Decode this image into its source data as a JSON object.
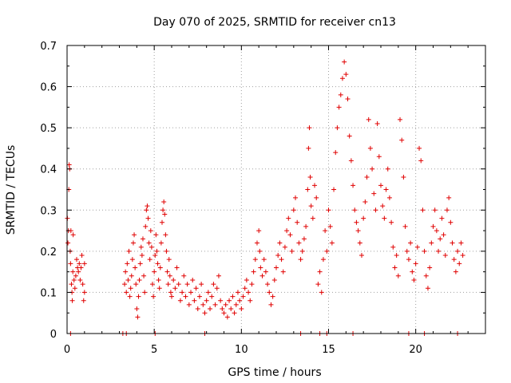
{
  "chart_data": {
    "type": "scatter",
    "title": "Day 070 of 2025, SRMTID for receiver cn13",
    "xlabel": "GPS time / hours",
    "ylabel": "SRMTID / TECUs",
    "xlim": [
      0,
      24
    ],
    "ylim": [
      0,
      0.7
    ],
    "xticks": [
      0,
      5,
      10,
      15,
      20
    ],
    "yticks": [
      0,
      0.1,
      0.2,
      0.3,
      0.4,
      0.5,
      0.6,
      0.7
    ],
    "xtick_labels": [
      "0",
      "5",
      "10",
      "15",
      "20"
    ],
    "ytick_labels": [
      "0",
      "0.1",
      "0.2",
      "0.3",
      "0.4",
      "0.5",
      "0.6",
      "0.7"
    ],
    "grid": true,
    "marker": "plus",
    "color": "#e00000",
    "series": [
      {
        "name": "SRMTID",
        "points": [
          [
            0.02,
            0.28
          ],
          [
            0.05,
            0.22
          ],
          [
            0.08,
            0.25
          ],
          [
            0.1,
            0.35
          ],
          [
            0.12,
            0.41
          ],
          [
            0.15,
            0.4
          ],
          [
            0.18,
            0.2
          ],
          [
            0.2,
            0.17
          ],
          [
            0.22,
            0.25
          ],
          [
            0.25,
            0.12
          ],
          [
            0.28,
            0.1
          ],
          [
            0.3,
            0.08
          ],
          [
            0.33,
            0.15
          ],
          [
            0.35,
            0.24
          ],
          [
            0.4,
            0.13
          ],
          [
            0.45,
            0.11
          ],
          [
            0.5,
            0.14
          ],
          [
            0.55,
            0.18
          ],
          [
            0.6,
            0.16
          ],
          [
            0.65,
            0.15
          ],
          [
            0.7,
            0.17
          ],
          [
            0.75,
            0.13
          ],
          [
            0.8,
            0.16
          ],
          [
            0.85,
            0.19
          ],
          [
            0.9,
            0.12
          ],
          [
            0.95,
            0.08
          ],
          [
            1.0,
            0.1
          ],
          [
            1.0,
            0.17
          ],
          [
            3.3,
            0.12
          ],
          [
            3.35,
            0.15
          ],
          [
            3.4,
            0.1
          ],
          [
            3.45,
            0.17
          ],
          [
            3.5,
            0.13
          ],
          [
            3.55,
            0.2
          ],
          [
            3.6,
            0.09
          ],
          [
            3.65,
            0.11
          ],
          [
            3.7,
            0.14
          ],
          [
            3.75,
            0.18
          ],
          [
            3.8,
            0.22
          ],
          [
            3.85,
            0.24
          ],
          [
            3.9,
            0.16
          ],
          [
            3.95,
            0.12
          ],
          [
            4.0,
            0.06
          ],
          [
            4.05,
            0.04
          ],
          [
            4.1,
            0.09
          ],
          [
            4.15,
            0.13
          ],
          [
            4.2,
            0.17
          ],
          [
            4.25,
            0.21
          ],
          [
            4.3,
            0.19
          ],
          [
            4.35,
            0.23
          ],
          [
            4.4,
            0.14
          ],
          [
            4.45,
            0.1
          ],
          [
            4.5,
            0.26
          ],
          [
            4.55,
            0.3
          ],
          [
            4.6,
            0.31
          ],
          [
            4.65,
            0.28
          ],
          [
            4.7,
            0.22
          ],
          [
            4.75,
            0.18
          ],
          [
            4.8,
            0.25
          ],
          [
            4.85,
            0.21
          ],
          [
            4.9,
            0.12
          ],
          [
            4.95,
            0.09
          ],
          [
            5.0,
            0.15
          ],
          [
            5.05,
            0.19
          ],
          [
            5.1,
            0.24
          ],
          [
            5.15,
            0.2
          ],
          [
            5.2,
            0.17
          ],
          [
            5.25,
            0.13
          ],
          [
            5.3,
            0.11
          ],
          [
            5.35,
            0.16
          ],
          [
            5.4,
            0.22
          ],
          [
            5.45,
            0.27
          ],
          [
            5.5,
            0.3
          ],
          [
            5.55,
            0.32
          ],
          [
            5.6,
            0.29
          ],
          [
            5.65,
            0.24
          ],
          [
            5.7,
            0.2
          ],
          [
            5.75,
            0.15
          ],
          [
            5.8,
            0.12
          ],
          [
            5.85,
            0.18
          ],
          [
            5.9,
            0.14
          ],
          [
            5.95,
            0.1
          ],
          [
            6.0,
            0.09
          ],
          [
            6.1,
            0.13
          ],
          [
            6.2,
            0.11
          ],
          [
            6.3,
            0.16
          ],
          [
            6.4,
            0.12
          ],
          [
            6.5,
            0.08
          ],
          [
            6.6,
            0.1
          ],
          [
            6.7,
            0.14
          ],
          [
            6.8,
            0.09
          ],
          [
            6.9,
            0.12
          ],
          [
            7.0,
            0.07
          ],
          [
            7.1,
            0.1
          ],
          [
            7.2,
            0.13
          ],
          [
            7.3,
            0.08
          ],
          [
            7.4,
            0.11
          ],
          [
            7.5,
            0.06
          ],
          [
            7.6,
            0.09
          ],
          [
            7.7,
            0.12
          ],
          [
            7.8,
            0.07
          ],
          [
            7.9,
            0.05
          ],
          [
            8.0,
            0.08
          ],
          [
            8.1,
            0.1
          ],
          [
            8.2,
            0.06
          ],
          [
            8.3,
            0.09
          ],
          [
            8.4,
            0.12
          ],
          [
            8.5,
            0.07
          ],
          [
            8.6,
            0.11
          ],
          [
            8.7,
            0.14
          ],
          [
            8.8,
            0.08
          ],
          [
            8.9,
            0.06
          ],
          [
            9.0,
            0.05
          ],
          [
            9.1,
            0.07
          ],
          [
            9.2,
            0.04
          ],
          [
            9.3,
            0.08
          ],
          [
            9.4,
            0.06
          ],
          [
            9.5,
            0.09
          ],
          [
            9.6,
            0.05
          ],
          [
            9.7,
            0.07
          ],
          [
            9.8,
            0.1
          ],
          [
            9.9,
            0.08
          ],
          [
            10.0,
            0.06
          ],
          [
            10.1,
            0.09
          ],
          [
            10.2,
            0.11
          ],
          [
            10.3,
            0.13
          ],
          [
            10.4,
            0.1
          ],
          [
            10.5,
            0.08
          ],
          [
            10.6,
            0.12
          ],
          [
            10.7,
            0.15
          ],
          [
            10.8,
            0.18
          ],
          [
            10.9,
            0.22
          ],
          [
            11.0,
            0.25
          ],
          [
            11.05,
            0.2
          ],
          [
            11.1,
            0.16
          ],
          [
            11.2,
            0.14
          ],
          [
            11.3,
            0.18
          ],
          [
            11.4,
            0.15
          ],
          [
            11.5,
            0.12
          ],
          [
            11.6,
            0.1
          ],
          [
            11.7,
            0.07
          ],
          [
            11.8,
            0.09
          ],
          [
            11.9,
            0.13
          ],
          [
            12.0,
            0.16
          ],
          [
            12.1,
            0.19
          ],
          [
            12.2,
            0.22
          ],
          [
            12.3,
            0.18
          ],
          [
            12.4,
            0.15
          ],
          [
            12.5,
            0.21
          ],
          [
            12.6,
            0.25
          ],
          [
            12.7,
            0.28
          ],
          [
            12.8,
            0.24
          ],
          [
            12.9,
            0.2
          ],
          [
            13.0,
            0.3
          ],
          [
            13.1,
            0.33
          ],
          [
            13.2,
            0.27
          ],
          [
            13.3,
            0.22
          ],
          [
            13.4,
            0.18
          ],
          [
            13.5,
            0.2
          ],
          [
            13.6,
            0.23
          ],
          [
            13.7,
            0.26
          ],
          [
            13.8,
            0.35
          ],
          [
            13.85,
            0.45
          ],
          [
            13.9,
            0.5
          ],
          [
            13.95,
            0.38
          ],
          [
            14.0,
            0.31
          ],
          [
            14.1,
            0.28
          ],
          [
            14.2,
            0.36
          ],
          [
            14.3,
            0.33
          ],
          [
            14.4,
            0.12
          ],
          [
            14.5,
            0.15
          ],
          [
            14.6,
            0.1
          ],
          [
            14.7,
            0.18
          ],
          [
            14.8,
            0.25
          ],
          [
            14.9,
            0.2
          ],
          [
            15.0,
            0.3
          ],
          [
            15.1,
            0.26
          ],
          [
            15.2,
            0.22
          ],
          [
            15.3,
            0.35
          ],
          [
            15.4,
            0.44
          ],
          [
            15.5,
            0.5
          ],
          [
            15.6,
            0.55
          ],
          [
            15.7,
            0.58
          ],
          [
            15.8,
            0.62
          ],
          [
            15.9,
            0.66
          ],
          [
            16.0,
            0.63
          ],
          [
            16.1,
            0.57
          ],
          [
            16.2,
            0.48
          ],
          [
            16.3,
            0.42
          ],
          [
            16.4,
            0.36
          ],
          [
            16.5,
            0.3
          ],
          [
            16.6,
            0.27
          ],
          [
            16.7,
            0.25
          ],
          [
            16.8,
            0.22
          ],
          [
            16.9,
            0.19
          ],
          [
            17.0,
            0.28
          ],
          [
            17.1,
            0.32
          ],
          [
            17.2,
            0.38
          ],
          [
            17.3,
            0.52
          ],
          [
            17.4,
            0.45
          ],
          [
            17.5,
            0.4
          ],
          [
            17.6,
            0.34
          ],
          [
            17.7,
            0.3
          ],
          [
            17.8,
            0.51
          ],
          [
            17.9,
            0.43
          ],
          [
            18.0,
            0.36
          ],
          [
            18.1,
            0.31
          ],
          [
            18.2,
            0.28
          ],
          [
            18.3,
            0.35
          ],
          [
            18.4,
            0.4
          ],
          [
            18.5,
            0.33
          ],
          [
            18.6,
            0.27
          ],
          [
            18.7,
            0.21
          ],
          [
            18.8,
            0.16
          ],
          [
            18.9,
            0.19
          ],
          [
            19.0,
            0.14
          ],
          [
            19.1,
            0.52
          ],
          [
            19.2,
            0.47
          ],
          [
            19.3,
            0.38
          ],
          [
            19.4,
            0.26
          ],
          [
            19.5,
            0.2
          ],
          [
            19.6,
            0.18
          ],
          [
            19.7,
            0.22
          ],
          [
            19.8,
            0.15
          ],
          [
            19.9,
            0.13
          ],
          [
            20.0,
            0.17
          ],
          [
            20.1,
            0.21
          ],
          [
            20.2,
            0.45
          ],
          [
            20.3,
            0.42
          ],
          [
            20.4,
            0.3
          ],
          [
            20.5,
            0.2
          ],
          [
            20.6,
            0.14
          ],
          [
            20.7,
            0.11
          ],
          [
            20.8,
            0.16
          ],
          [
            20.9,
            0.22
          ],
          [
            21.0,
            0.26
          ],
          [
            21.1,
            0.3
          ],
          [
            21.2,
            0.25
          ],
          [
            21.3,
            0.2
          ],
          [
            21.4,
            0.23
          ],
          [
            21.5,
            0.28
          ],
          [
            21.6,
            0.24
          ],
          [
            21.7,
            0.19
          ],
          [
            21.8,
            0.3
          ],
          [
            21.9,
            0.33
          ],
          [
            22.0,
            0.27
          ],
          [
            22.1,
            0.22
          ],
          [
            22.2,
            0.18
          ],
          [
            22.3,
            0.15
          ],
          [
            22.4,
            0.2
          ],
          [
            22.5,
            0.17
          ],
          [
            22.6,
            0.22
          ],
          [
            22.7,
            0.19
          ]
        ]
      }
    ],
    "zero_markers_x": [
      0.2,
      3.2,
      3.4,
      5.05,
      7.9,
      13.4,
      14.5,
      14.9,
      16.4,
      19.6,
      20.5,
      22.4
    ]
  }
}
